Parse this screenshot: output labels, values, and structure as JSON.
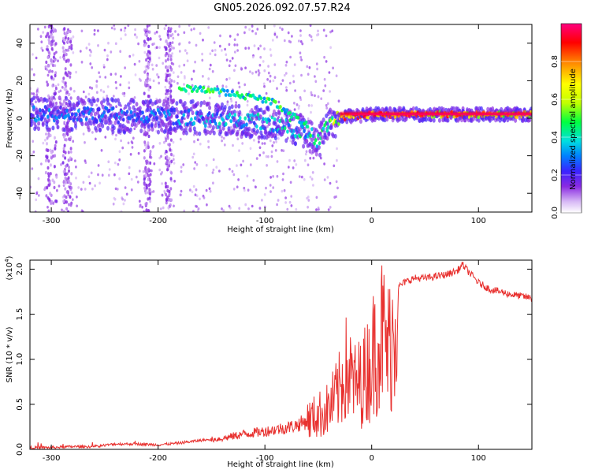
{
  "title": "GN05.2026.092.07.57.R24",
  "chart_data": [
    {
      "type": "heatmap",
      "name": "spectrogram",
      "xlabel": "Height of straight line (km)",
      "ylabel": "Frequency (Hz)",
      "xlim": [
        -320,
        150
      ],
      "ylim": [
        -50,
        50
      ],
      "xticks": [
        -300,
        -200,
        -100,
        0,
        100
      ],
      "yticks": [
        -40,
        -20,
        0,
        20,
        40
      ],
      "colorbar": {
        "label": "Normalized spectral amplitude",
        "range": [
          0,
          1
        ],
        "ticks": [
          "0.0",
          "0.2",
          "0.4",
          "0.6",
          "0.8"
        ],
        "tick_values": [
          0,
          0.2,
          0.4,
          0.6,
          0.8
        ],
        "colormap": [
          "#ffffff",
          "#8a2be2",
          "#3b24ff",
          "#0080ff",
          "#00e0e0",
          "#00ff40",
          "#c0ff00",
          "#ffff00",
          "#ff8000",
          "#ff0000",
          "#ff0080"
        ]
      },
      "features": {
        "main_line": {
          "height_km": [
            -320,
            -300,
            -260,
            -220,
            -180,
            -160,
            -140,
            -120,
            -100,
            -80,
            -60,
            -50,
            -40,
            -30,
            -20,
            0,
            20,
            60,
            100,
            150
          ],
          "freq_hz": [
            3,
            2,
            2,
            1,
            1,
            0,
            -1,
            -1,
            -2,
            -4,
            -8,
            -12,
            -3,
            0,
            1,
            2,
            2,
            2,
            2,
            2
          ],
          "amplitude": [
            0.3,
            0.3,
            0.3,
            0.3,
            0.35,
            0.35,
            0.4,
            0.4,
            0.4,
            0.45,
            0.45,
            0.45,
            0.6,
            0.8,
            0.9,
            0.95,
            0.95,
            0.85,
            0.8,
            0.75
          ]
        },
        "upper_branch": {
          "height_km": [
            -180,
            -170,
            -150,
            -130,
            -110,
            -100,
            -90,
            -80,
            -70,
            -60
          ],
          "freq_hz": [
            15,
            16,
            15,
            13,
            11,
            10,
            8,
            4,
            0,
            -4
          ]
        }
      }
    },
    {
      "type": "line",
      "name": "snr",
      "xlabel": "Height of straight line (km)",
      "ylabel": "SNR (10 * v/v)",
      "y_scale_label": "(x10",
      "y_scale_exponent": "4",
      "y_scale_suffix": ")",
      "xlim": [
        -320,
        150
      ],
      "ylim": [
        0,
        2.1
      ],
      "xticks": [
        -300,
        -200,
        -100,
        0,
        100
      ],
      "yticks": [
        "0.0",
        "0.5",
        "1.0",
        "1.5",
        "2.0"
      ],
      "ytick_values": [
        0,
        0.5,
        1.0,
        1.5,
        2.0
      ],
      "color": "#e8312f",
      "series": [
        {
          "name": "SNR",
          "x": [
            -320,
            -300,
            -280,
            -260,
            -240,
            -220,
            -200,
            -180,
            -160,
            -140,
            -120,
            -100,
            -90,
            -80,
            -70,
            -60,
            -50,
            -40,
            -30,
            -25,
            -20,
            -15,
            -10,
            -5,
            0,
            5,
            10,
            15,
            20,
            25,
            30,
            40,
            50,
            60,
            70,
            80,
            85,
            90,
            100,
            110,
            120,
            130,
            140,
            150
          ],
          "y": [
            0.02,
            0.02,
            0.03,
            0.03,
            0.06,
            0.06,
            0.05,
            0.07,
            0.1,
            0.12,
            0.17,
            0.2,
            0.22,
            0.24,
            0.27,
            0.32,
            0.38,
            0.45,
            0.65,
            0.9,
            0.8,
            0.7,
            0.75,
            0.85,
            1.0,
            1.2,
            1.3,
            1.1,
            1.3,
            1.8,
            1.85,
            1.9,
            1.9,
            1.92,
            1.94,
            1.98,
            2.05,
            1.98,
            1.85,
            1.78,
            1.75,
            1.72,
            1.7,
            1.68
          ]
        }
      ]
    }
  ]
}
